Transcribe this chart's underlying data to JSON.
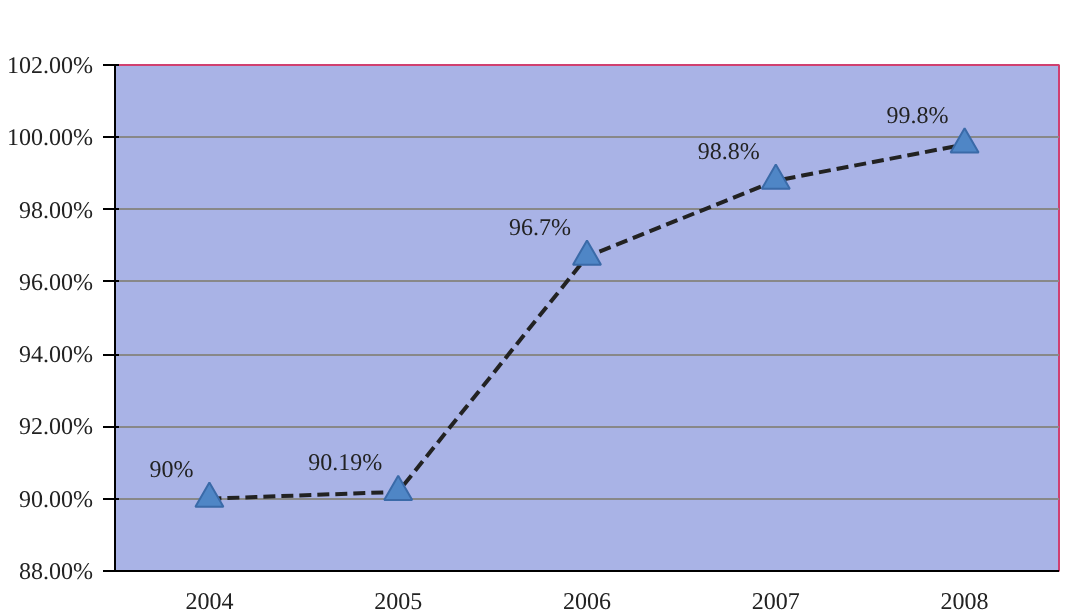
{
  "chart_data": {
    "type": "line",
    "categories": [
      "2004",
      "2005",
      "2006",
      "2007",
      "2008"
    ],
    "series": [
      {
        "color": "#222222",
        "values": [
          90,
          90.19,
          96.7,
          98.8,
          99.8
        ],
        "value_labels": [
          "90%",
          "90.19%",
          "96.7%",
          "98.8%",
          "99.8%"
        ]
      }
    ],
    "ylim": [
      88,
      102
    ],
    "yticks": [
      {
        "value": 88,
        "label": "88.00%"
      },
      {
        "value": 90,
        "label": "90.00%"
      },
      {
        "value": 92,
        "label": "92.00%"
      },
      {
        "value": 94,
        "label": "94.00%"
      },
      {
        "value": 96,
        "label": "96.00%"
      },
      {
        "value": 98,
        "label": "98.00%"
      },
      {
        "value": 100,
        "label": "100.00%"
      },
      {
        "value": 102,
        "label": "102.00%"
      }
    ],
    "grid": "y",
    "marker": "triangle",
    "line_style": "dashed"
  }
}
